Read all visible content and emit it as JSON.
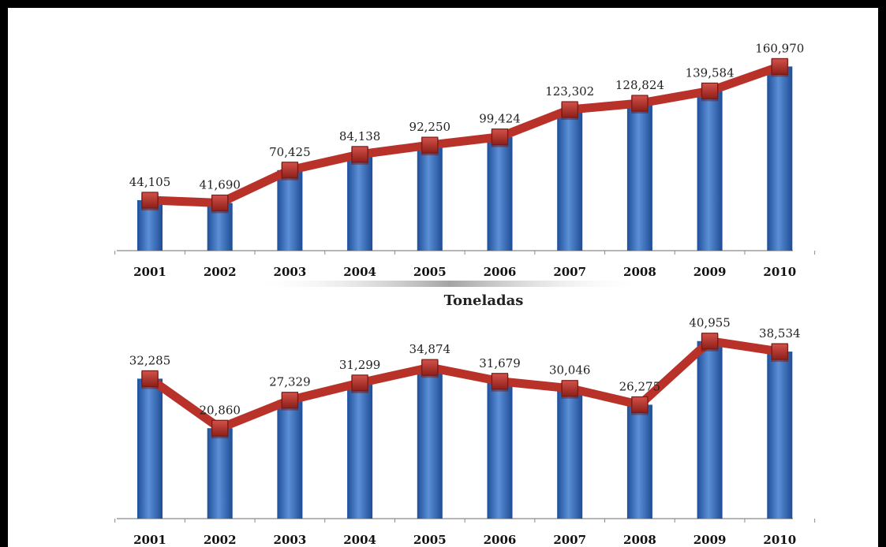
{
  "chart_data": [
    {
      "type": "bar",
      "overlay": "line",
      "title": "",
      "categories": [
        "2001",
        "2002",
        "2003",
        "2004",
        "2005",
        "2006",
        "2007",
        "2008",
        "2009",
        "2010"
      ],
      "values": [
        44105,
        41690,
        70425,
        84138,
        92250,
        99424,
        123302,
        128824,
        139584,
        160970
      ],
      "labels": [
        "44,105",
        "41,690",
        "70,425",
        "84,138",
        "92,250",
        "99,424",
        "123,302",
        "128,824",
        "139,584",
        "160,970"
      ],
      "ylim": [
        0,
        175000
      ],
      "grid": false,
      "colors": {
        "bar": "#3d6db5",
        "line": "#b8322a"
      }
    },
    {
      "type": "bar",
      "overlay": "line",
      "title": "Toneladas",
      "categories": [
        "2001",
        "2002",
        "2003",
        "2004",
        "2005",
        "2006",
        "2007",
        "2008",
        "2009",
        "2010"
      ],
      "values": [
        32285,
        20860,
        27329,
        31299,
        34874,
        31679,
        30046,
        26275,
        40955,
        38534
      ],
      "labels": [
        "32,285",
        "20,860",
        "27,329",
        "31,299",
        "34,874",
        "31,679",
        "30,046",
        "26,275",
        "40,955",
        "38,534"
      ],
      "ylim": [
        0,
        46000
      ],
      "grid": false,
      "colors": {
        "bar": "#3d6db5",
        "line": "#b8322a"
      }
    }
  ]
}
